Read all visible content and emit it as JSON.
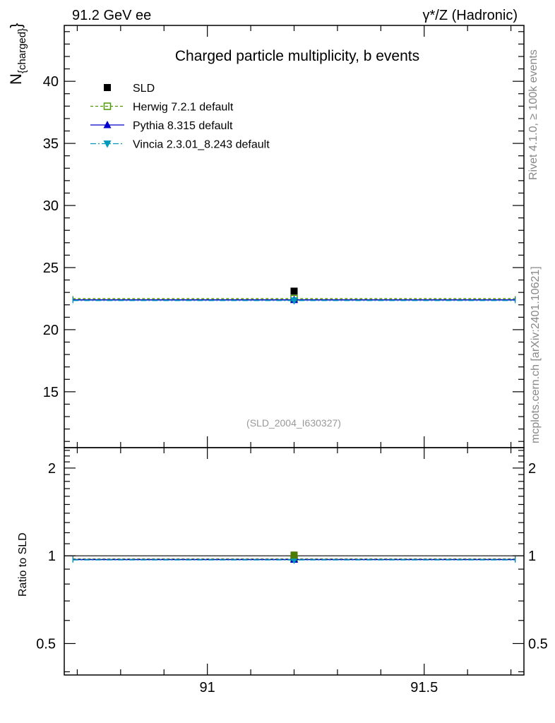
{
  "header": {
    "left": "91.2 GeV ee",
    "right": "γ*/Z (Hadronic)"
  },
  "side_labels": {
    "rivet": "Rivet 4.1.0, ≥ 100k events",
    "mcplots": "mcplots.cern.ch [arXiv:2401.10621]"
  },
  "chart_data": {
    "type": "scatter",
    "title": "Charged particle multiplicity, b events",
    "ylabel": "N_{charged}",
    "ylabel_main": "N",
    "ylabel_sub": "{charged}",
    "ylabel_close": "}",
    "ratio_ylabel": "Ratio to SLD",
    "analysis_tag": "(SLD_2004_I630327)",
    "xlim": [
      90.67,
      91.73
    ],
    "ylim": [
      10.5,
      44.5
    ],
    "ratio_ylim": [
      0.39,
      2.35
    ],
    "x_ticks": [
      {
        "v": 91,
        "t": "91"
      },
      {
        "v": 91.5,
        "t": "91.5"
      }
    ],
    "y_ticks": [
      {
        "v": 15,
        "t": "15"
      },
      {
        "v": 20,
        "t": "20"
      },
      {
        "v": 25,
        "t": "25"
      },
      {
        "v": 30,
        "t": "30"
      },
      {
        "v": 35,
        "t": "35"
      },
      {
        "v": 40,
        "t": "40"
      }
    ],
    "ratio_ticks": [
      {
        "v": 0.5,
        "t": "0.5"
      },
      {
        "v": 1,
        "t": "1"
      },
      {
        "v": 2,
        "t": "2"
      }
    ],
    "bin": [
      90.69,
      91.71
    ],
    "data": {
      "name": "SLD",
      "x": 91.2,
      "y": 23.1,
      "color": "#000000"
    },
    "series": [
      {
        "name": "Herwig 7.2.1 default",
        "y": 22.5,
        "ratio": 0.975,
        "color": "#4d9900",
        "dash": "4,3",
        "marker": "open-square"
      },
      {
        "name": "Pythia 8.315 default",
        "y": 22.4,
        "ratio": 0.971,
        "color": "#0000cc",
        "dash": "",
        "marker": "triangle-up"
      },
      {
        "name": "Vincia 2.3.01_8.243 default",
        "y": 22.35,
        "ratio": 0.968,
        "color": "#0099bb",
        "dash": "8,3,2,3",
        "marker": "triangle-down"
      }
    ]
  }
}
